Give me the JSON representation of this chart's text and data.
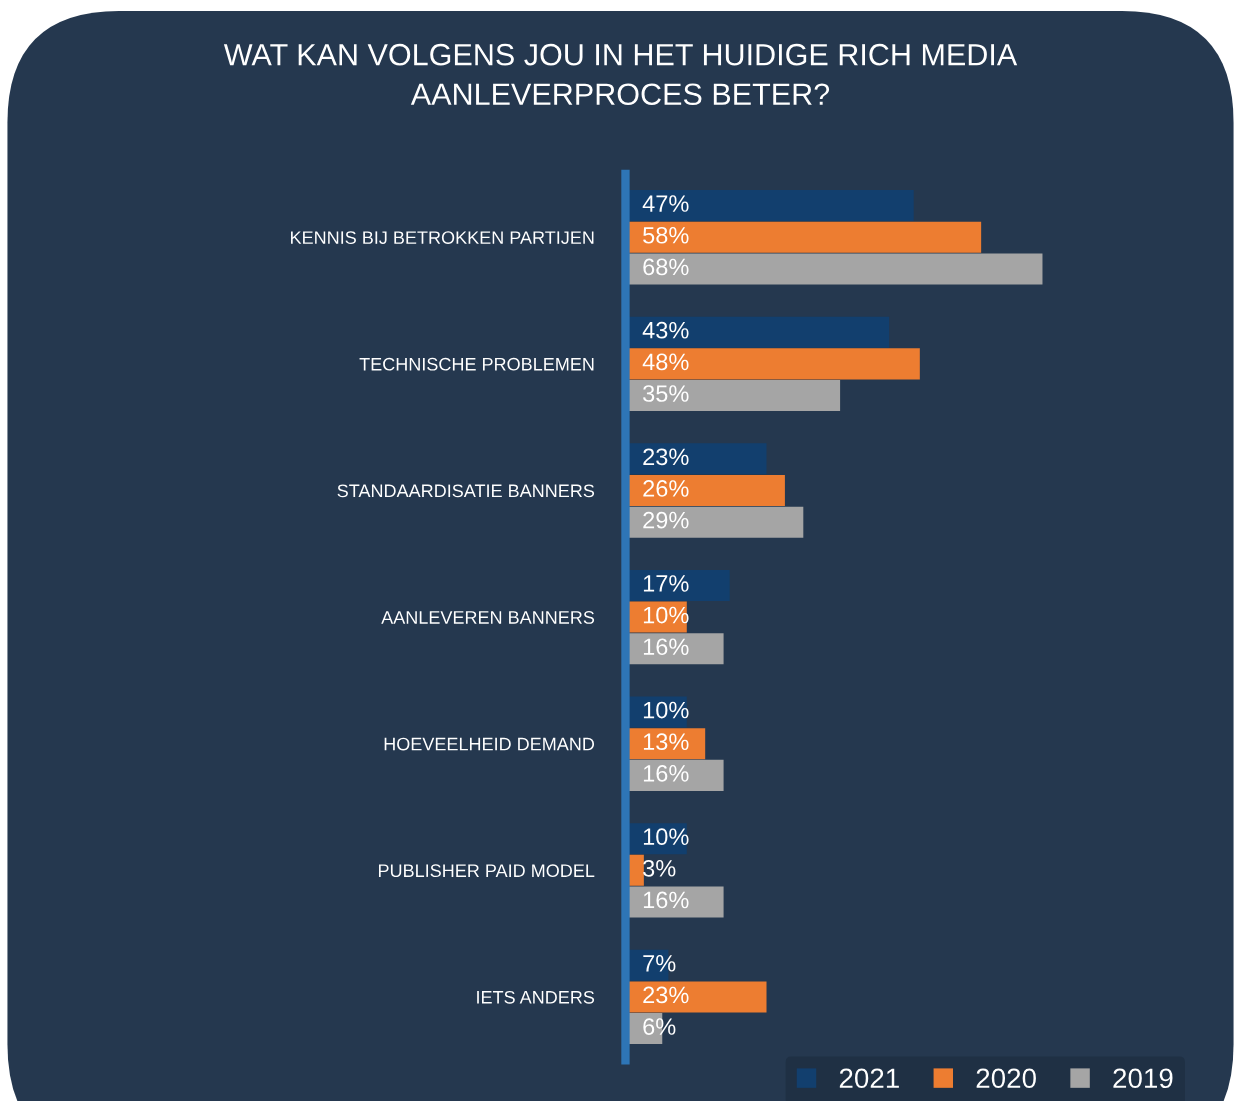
{
  "chart_data": {
    "type": "bar",
    "orientation": "horizontal",
    "title": "WAT KAN VOLGENS JOU IN HET HUIDIGE RICH MEDIA\nAANLEVERPROCES BETER?",
    "categories": [
      "KENNIS BIJ BETROKKEN PARTIJEN",
      "TECHNISCHE PROBLEMEN",
      "STANDAARDISATIE BANNERS",
      "AANLEVEREN BANNERS",
      "HOEVEELHEID DEMAND",
      "PUBLISHER PAID MODEL",
      "IETS ANDERS"
    ],
    "series": [
      {
        "name": "2021",
        "color": "#123f6e",
        "values": [
          47,
          43,
          23,
          17,
          10,
          10,
          7
        ],
        "value_labels": [
          "47%",
          "43%",
          "23%",
          "17%",
          "10%",
          "10%",
          "7%"
        ]
      },
      {
        "name": "2020",
        "color": "#ed7d31",
        "values": [
          58,
          48,
          26,
          10,
          13,
          3,
          23
        ],
        "value_labels": [
          "58%",
          "48%",
          "26%",
          "10%",
          "13%",
          "3%",
          "23%"
        ]
      },
      {
        "name": "2019",
        "color": "#a5a5a5",
        "values": [
          68,
          35,
          29,
          16,
          16,
          16,
          6
        ],
        "value_labels": [
          "68%",
          "35%",
          "29%",
          "16%",
          "16%",
          "16%",
          "6%"
        ]
      }
    ],
    "tick_labels": "y",
    "grid": false,
    "legend": "bottom right"
  }
}
